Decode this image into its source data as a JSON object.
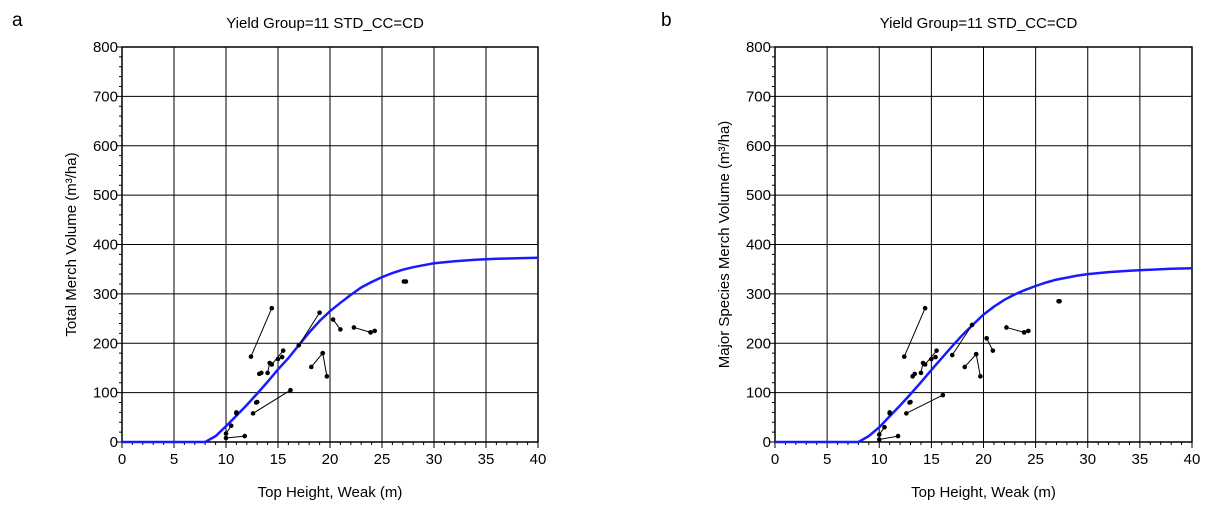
{
  "panels": [
    {
      "letter": "a"
    },
    {
      "letter": "b"
    }
  ],
  "chart_data": [
    {
      "type": "scatter",
      "title": "Yield Group=11 STD_CC=CD",
      "xlabel": "Top Height, Weak (m)",
      "ylabel": "Total Merch Volume (m³/ha)",
      "xlim": [
        0,
        40
      ],
      "ylim": [
        0,
        800
      ],
      "xticks": [
        0,
        5,
        10,
        15,
        20,
        25,
        30,
        35,
        40
      ],
      "yticks": [
        0,
        100,
        200,
        300,
        400,
        500,
        600,
        700,
        800
      ],
      "grid": true,
      "series": [
        {
          "color": "#1a1aff",
          "kind": "curve",
          "points": [
            [
              0,
              0
            ],
            [
              8,
              0
            ],
            [
              9,
              12
            ],
            [
              10,
              32
            ],
            [
              11,
              53
            ],
            [
              12,
              75
            ],
            [
              13,
              98
            ],
            [
              14,
              122
            ],
            [
              15,
              147
            ],
            [
              16,
              170
            ],
            [
              17,
              196
            ],
            [
              18,
              222
            ],
            [
              19,
              245
            ],
            [
              20,
              265
            ],
            [
              21,
              282
            ],
            [
              22,
              298
            ],
            [
              23,
              313
            ],
            [
              24,
              324
            ],
            [
              25,
              334
            ],
            [
              26,
              342
            ],
            [
              27,
              349
            ],
            [
              28,
              354
            ],
            [
              29,
              358
            ],
            [
              30,
              362
            ],
            [
              32,
              366
            ],
            [
              34,
              369
            ],
            [
              36,
              371
            ],
            [
              38,
              372
            ],
            [
              40,
              373
            ]
          ]
        },
        {
          "color": "#000000",
          "kind": "segments",
          "segments": [
            [
              [
                10,
                17
              ],
              [
                10.5,
                33
              ]
            ],
            [
              [
                10,
                8
              ],
              [
                11.8,
                12
              ]
            ],
            [
              [
                11,
                58
              ],
              [
                11,
                60
              ]
            ],
            [
              [
                12.4,
                173
              ],
              [
                14.4,
                271
              ]
            ],
            [
              [
                12.6,
                58
              ],
              [
                16.2,
                105
              ]
            ],
            [
              [
                12.9,
                80
              ],
              [
                13.0,
                81
              ]
            ],
            [
              [
                13.2,
                138
              ],
              [
                13.4,
                140
              ]
            ],
            [
              [
                14,
                140
              ],
              [
                14.2,
                160
              ]
            ],
            [
              [
                14.4,
                157
              ],
              [
                15.5,
                185
              ]
            ],
            [
              [
                15,
                168
              ],
              [
                15.4,
                172
              ]
            ],
            [
              [
                17,
                196
              ],
              [
                19,
                262
              ]
            ],
            [
              [
                18.2,
                152
              ],
              [
                19.3,
                180
              ]
            ],
            [
              [
                19.3,
                180
              ],
              [
                19.7,
                133
              ]
            ],
            [
              [
                20.3,
                248
              ],
              [
                21,
                228
              ]
            ],
            [
              [
                22.3,
                232
              ],
              [
                23.9,
                222
              ]
            ],
            [
              [
                23.9,
                222
              ],
              [
                24.3,
                225
              ]
            ],
            [
              [
                27.1,
                325
              ],
              [
                27.3,
                325
              ]
            ]
          ]
        }
      ]
    },
    {
      "type": "scatter",
      "title": "Yield Group=11 STD_CC=CD",
      "xlabel": "Top Height, Weak (m)",
      "ylabel": "Major Species Merch Volume (m³/ha)",
      "xlim": [
        0,
        40
      ],
      "ylim": [
        0,
        800
      ],
      "xticks": [
        0,
        5,
        10,
        15,
        20,
        25,
        30,
        35,
        40
      ],
      "yticks": [
        0,
        100,
        200,
        300,
        400,
        500,
        600,
        700,
        800
      ],
      "grid": true,
      "series": [
        {
          "color": "#1a1aff",
          "kind": "curve",
          "points": [
            [
              0,
              0
            ],
            [
              8,
              0
            ],
            [
              9,
              12
            ],
            [
              10,
              30
            ],
            [
              11,
              52
            ],
            [
              12,
              74
            ],
            [
              13,
              97
            ],
            [
              14,
              121
            ],
            [
              15,
              146
            ],
            [
              16,
              170
            ],
            [
              17,
              194
            ],
            [
              18,
              217
            ],
            [
              19,
              238
            ],
            [
              20,
              258
            ],
            [
              21,
              274
            ],
            [
              22,
              288
            ],
            [
              23,
              299
            ],
            [
              24,
              308
            ],
            [
              25,
              316
            ],
            [
              26,
              323
            ],
            [
              27,
              329
            ],
            [
              28,
              333
            ],
            [
              29,
              337
            ],
            [
              30,
              340
            ],
            [
              32,
              344
            ],
            [
              34,
              347
            ],
            [
              36,
              349
            ],
            [
              38,
              351
            ],
            [
              40,
              352
            ]
          ]
        },
        {
          "color": "#000000",
          "kind": "segments",
          "segments": [
            [
              [
                10,
                15
              ],
              [
                10.5,
                30
              ]
            ],
            [
              [
                10,
                5
              ],
              [
                11.8,
                12
              ]
            ],
            [
              [
                11,
                58
              ],
              [
                11,
                60
              ]
            ],
            [
              [
                12.4,
                173
              ],
              [
                14.4,
                271
              ]
            ],
            [
              [
                12.6,
                58
              ],
              [
                16.1,
                95
              ]
            ],
            [
              [
                12.9,
                80
              ],
              [
                13.0,
                81
              ]
            ],
            [
              [
                13.2,
                133
              ],
              [
                13.4,
                138
              ]
            ],
            [
              [
                14,
                140
              ],
              [
                14.2,
                160
              ]
            ],
            [
              [
                14.4,
                157
              ],
              [
                15.5,
                185
              ]
            ],
            [
              [
                15,
                168
              ],
              [
                15.4,
                172
              ]
            ],
            [
              [
                17,
                176
              ],
              [
                18.9,
                237
              ]
            ],
            [
              [
                18.2,
                152
              ],
              [
                19.3,
                178
              ]
            ],
            [
              [
                19.3,
                178
              ],
              [
                19.7,
                133
              ]
            ],
            [
              [
                20.3,
                210
              ],
              [
                20.9,
                185
              ]
            ],
            [
              [
                22.2,
                232
              ],
              [
                23.9,
                222
              ]
            ],
            [
              [
                23.9,
                222
              ],
              [
                24.3,
                225
              ]
            ],
            [
              [
                27.2,
                285
              ],
              [
                27.3,
                285
              ]
            ]
          ]
        }
      ]
    }
  ]
}
